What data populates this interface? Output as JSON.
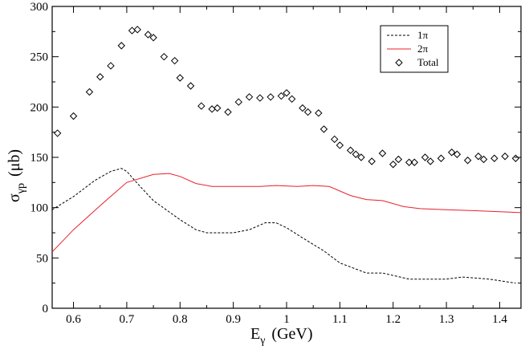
{
  "chart_data": {
    "type": "line",
    "title": "",
    "xlabel": "E",
    "xlabel_sub": "γ",
    "xlabel_unit": "(GeV)",
    "ylabel": "σ",
    "ylabel_sub": "γp",
    "ylabel_unit": "(μb)",
    "xlim": [
      0.56,
      1.44
    ],
    "ylim": [
      0,
      300
    ],
    "x_ticks": [
      0.6,
      0.7,
      0.8,
      0.9,
      1.0,
      1.1,
      1.2,
      1.3,
      1.4
    ],
    "x_tick_labels": [
      "0.6",
      "0.7",
      "0.8",
      "0.9",
      "1",
      "1.1",
      "1.2",
      "1.3",
      "1.4"
    ],
    "y_ticks": [
      0,
      50,
      100,
      150,
      200,
      250,
      300
    ],
    "y_tick_labels": [
      "0",
      "50",
      "100",
      "150",
      "200",
      "250",
      "300"
    ],
    "grid": false,
    "legend_position": "top-right",
    "series": [
      {
        "name": "1π",
        "style": "dashed",
        "color": "#000000",
        "x": [
          0.56,
          0.6,
          0.64,
          0.67,
          0.69,
          0.7,
          0.72,
          0.75,
          0.8,
          0.83,
          0.85,
          0.9,
          0.93,
          0.96,
          0.98,
          1.0,
          1.03,
          1.07,
          1.1,
          1.15,
          1.18,
          1.23,
          1.3,
          1.33,
          1.38,
          1.43
        ],
        "values": [
          98,
          111,
          127,
          136,
          139,
          136,
          124,
          107,
          88,
          78,
          75,
          75,
          78,
          85,
          85,
          80,
          70,
          57,
          45,
          35,
          35,
          29,
          29,
          31,
          29,
          25
        ]
      },
      {
        "name": "2π",
        "style": "solid",
        "color": "#e8202a",
        "x": [
          0.56,
          0.6,
          0.65,
          0.7,
          0.75,
          0.78,
          0.8,
          0.83,
          0.86,
          0.9,
          0.95,
          0.98,
          1.02,
          1.05,
          1.08,
          1.12,
          1.15,
          1.18,
          1.22,
          1.25,
          1.3,
          1.35,
          1.4,
          1.44
        ],
        "values": [
          56,
          78,
          102,
          125,
          133,
          134,
          131,
          124,
          121,
          121,
          121,
          122,
          121,
          122,
          121,
          112,
          108,
          107,
          101,
          99,
          98,
          97,
          96,
          95
        ]
      },
      {
        "name": "Total",
        "style": "diamond-markers",
        "color": "#000000",
        "x": [
          0.57,
          0.6,
          0.63,
          0.65,
          0.67,
          0.69,
          0.71,
          0.72,
          0.74,
          0.75,
          0.77,
          0.79,
          0.8,
          0.82,
          0.84,
          0.86,
          0.87,
          0.89,
          0.91,
          0.93,
          0.95,
          0.97,
          0.99,
          1.0,
          1.01,
          1.03,
          1.04,
          1.06,
          1.07,
          1.09,
          1.1,
          1.12,
          1.13,
          1.14,
          1.16,
          1.18,
          1.2,
          1.21,
          1.23,
          1.24,
          1.26,
          1.27,
          1.29,
          1.31,
          1.32,
          1.34,
          1.36,
          1.37,
          1.39,
          1.41,
          1.43
        ],
        "values": [
          174,
          191,
          215,
          230,
          241,
          261,
          276,
          277,
          272,
          269,
          250,
          246,
          229,
          221,
          201,
          198,
          199,
          195,
          205,
          210,
          209,
          210,
          211,
          214,
          208,
          199,
          195,
          194,
          178,
          168,
          162,
          157,
          153,
          150,
          146,
          154,
          143,
          148,
          145,
          145,
          150,
          146,
          149,
          155,
          153,
          147,
          151,
          148,
          149,
          151,
          149
        ]
      }
    ]
  }
}
